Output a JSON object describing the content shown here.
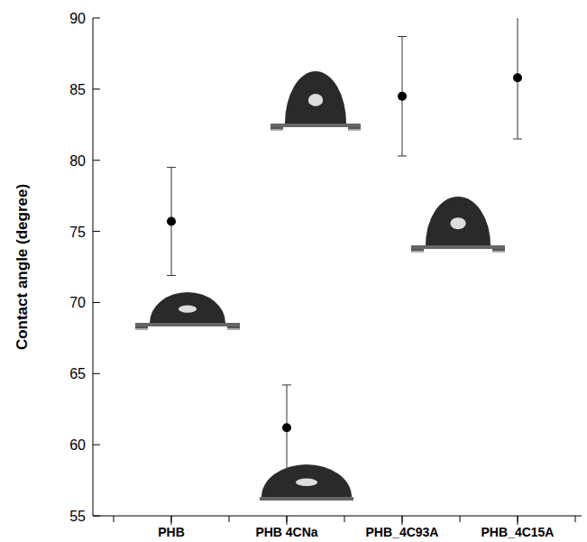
{
  "chart_data": {
    "type": "scatter",
    "ylabel": "Contact angle (degree)",
    "categories": [
      "PHB",
      "PHB 4CNa",
      "PHB_4C93A",
      "PHB_4C15A"
    ],
    "values": [
      75.7,
      61.2,
      84.5,
      85.8
    ],
    "errors": [
      3.8,
      3.0,
      4.2,
      4.3
    ],
    "color": "#000000",
    "marker": "circle",
    "ylim": [
      55,
      90
    ],
    "yticks": [
      55,
      60,
      65,
      70,
      75,
      80,
      85,
      90
    ],
    "grid": false
  }
}
